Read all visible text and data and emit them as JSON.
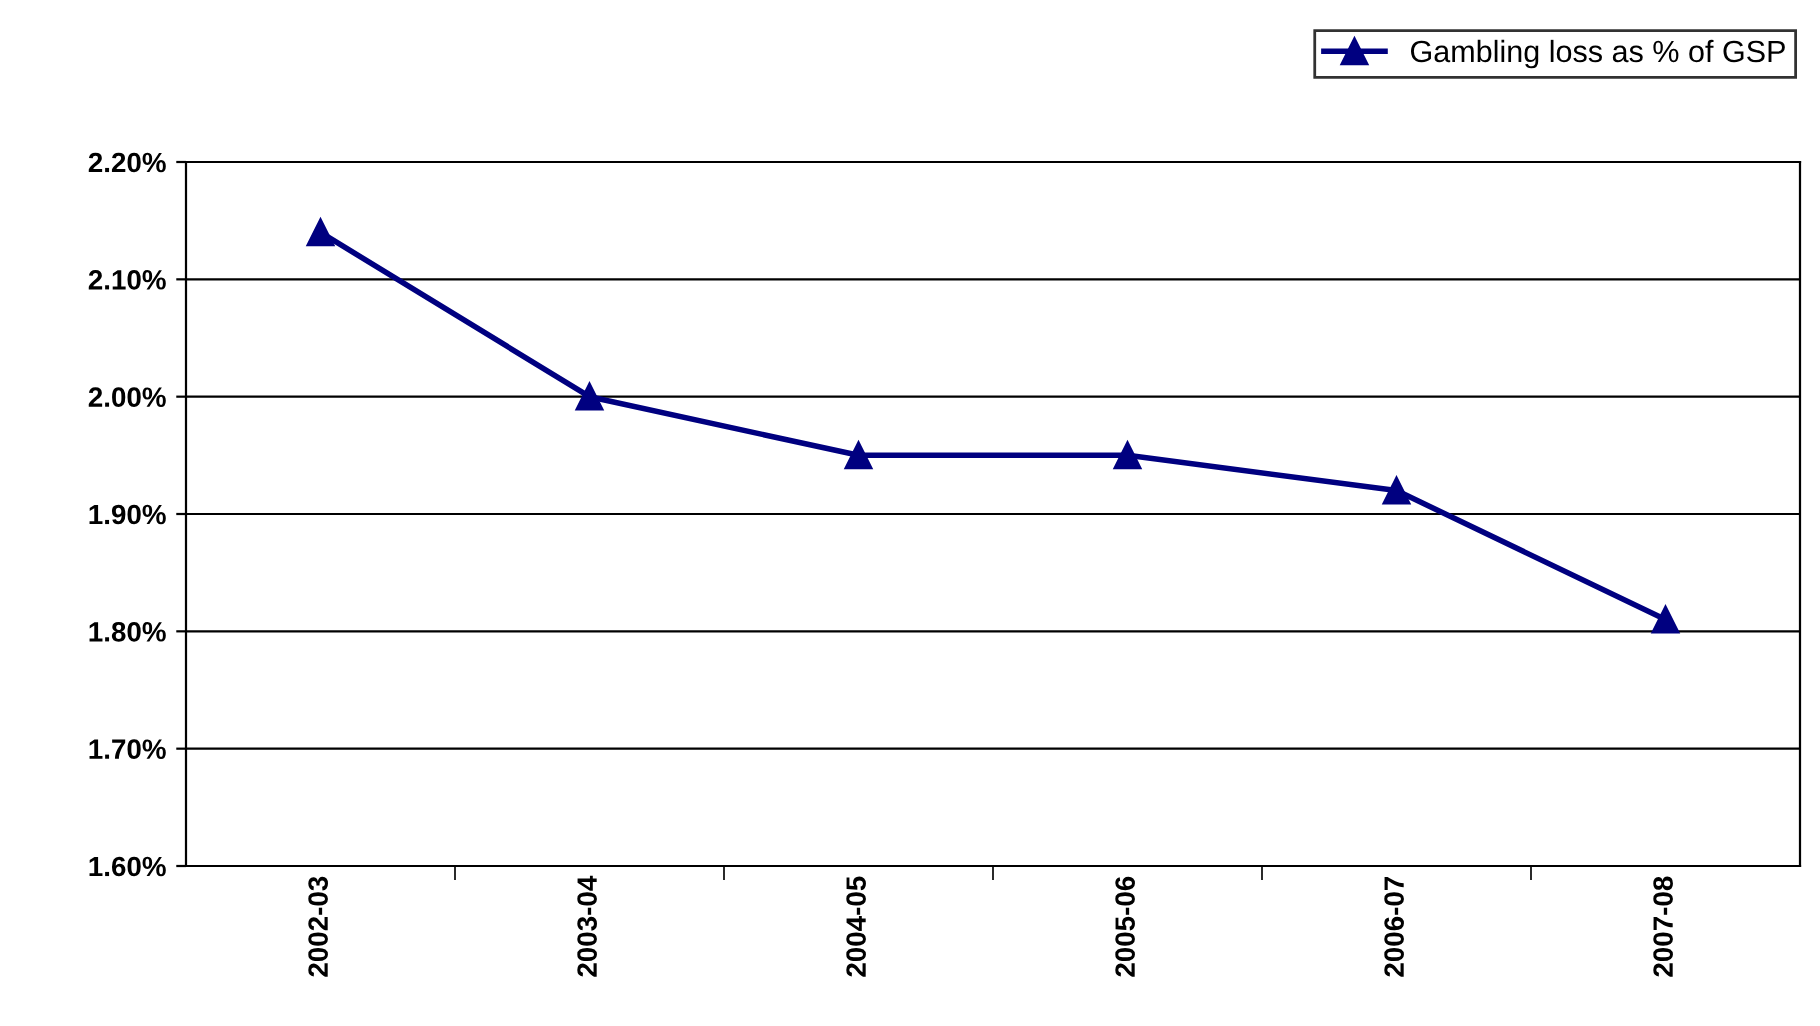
{
  "chart_data": {
    "type": "line",
    "categories": [
      "2002-03",
      "2003-04",
      "2004-05",
      "2005-06",
      "2006-07",
      "2007-08"
    ],
    "series": [
      {
        "name": "Gambling loss as % of GSP",
        "color": "#000080",
        "values": [
          2.14,
          2.0,
          1.95,
          1.95,
          1.92,
          1.81
        ]
      }
    ],
    "ylim": [
      1.6,
      2.2
    ],
    "yticks": [
      {
        "value": 1.6,
        "label": "1.60%"
      },
      {
        "value": 1.7,
        "label": "1.70%"
      },
      {
        "value": 1.8,
        "label": "1.80%"
      },
      {
        "value": 1.9,
        "label": "1.90%"
      },
      {
        "value": 2.0,
        "label": "2.00%"
      },
      {
        "value": 2.1,
        "label": "2.10%"
      },
      {
        "value": 2.2,
        "label": "2.20%"
      }
    ],
    "grid": "y",
    "legend": "top right",
    "marker": "triangle",
    "line_style": "solid"
  }
}
